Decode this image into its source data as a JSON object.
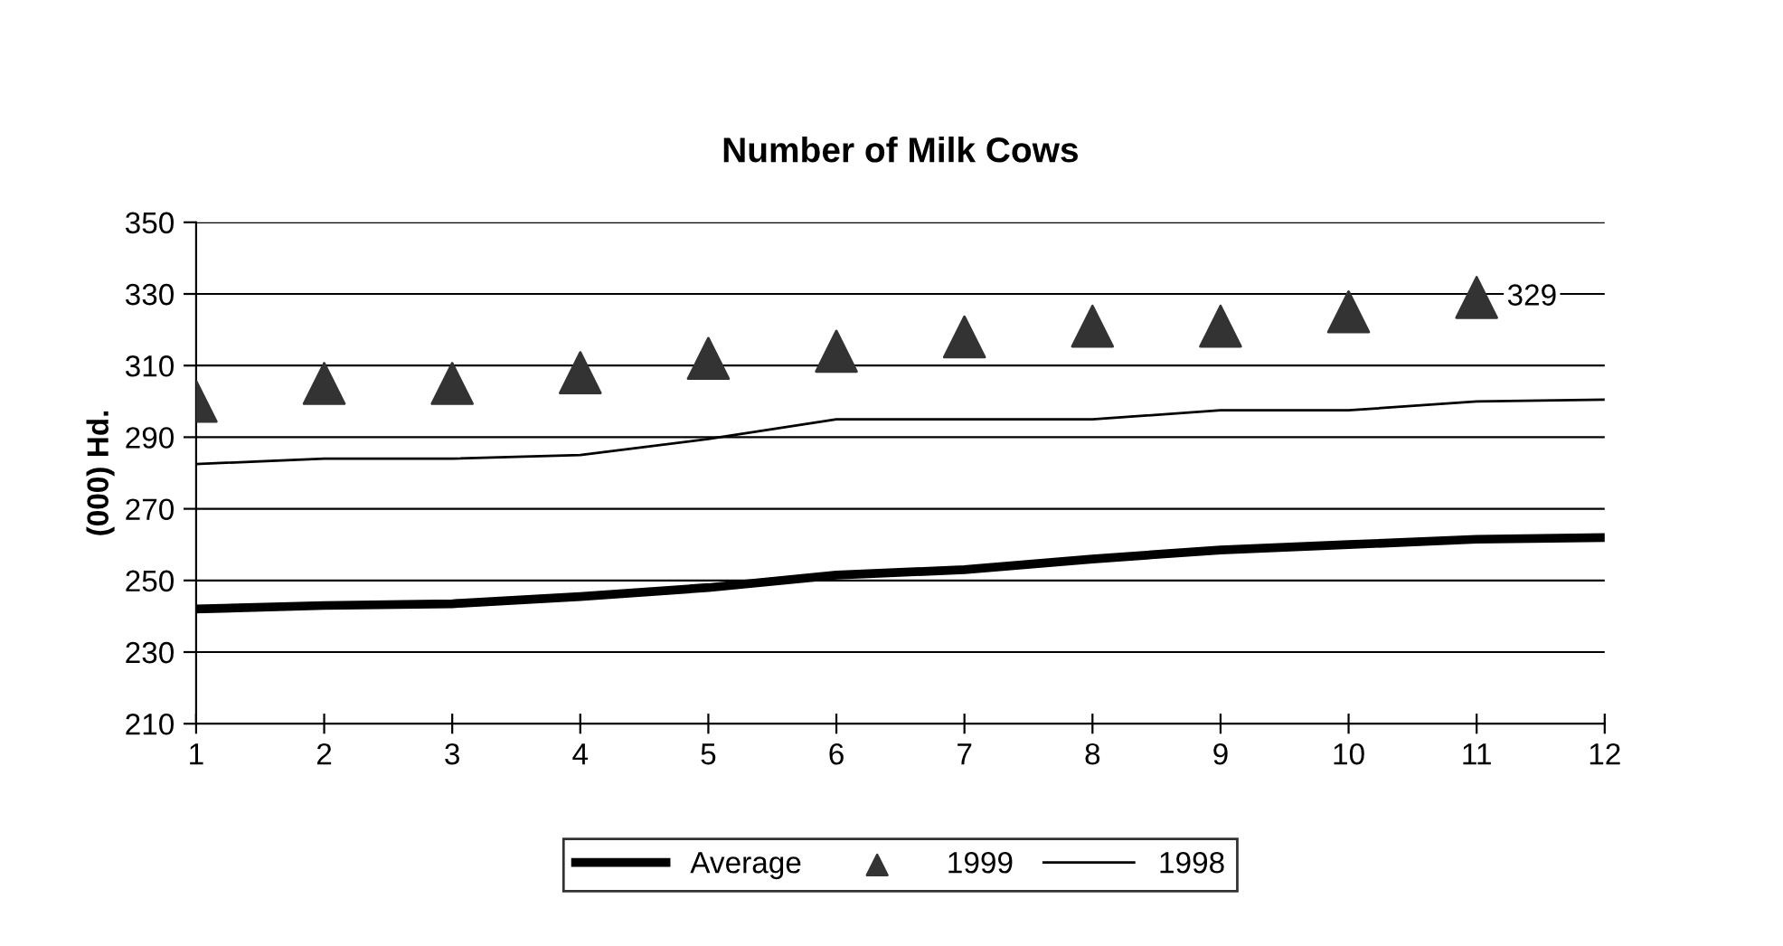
{
  "chart_data": {
    "type": "line",
    "title": "Number of Milk Cows",
    "ylabel": "(000) Hd.",
    "x": [
      1,
      2,
      3,
      4,
      5,
      6,
      7,
      8,
      9,
      10,
      11,
      12
    ],
    "xlim": [
      1,
      12
    ],
    "xticks": [
      1,
      2,
      3,
      4,
      5,
      6,
      7,
      8,
      9,
      10,
      11,
      12
    ],
    "ylim": [
      210,
      350
    ],
    "yticks": [
      210,
      230,
      250,
      270,
      290,
      310,
      330,
      350
    ],
    "grid": "y",
    "legend": "bottom",
    "series": [
      {
        "name": "Average",
        "color": "#000000",
        "values": [
          242,
          243,
          243.5,
          245.5,
          248,
          251.5,
          253,
          256,
          258.5,
          260,
          261.5,
          262
        ]
      },
      {
        "name": "1999",
        "type": "scatter",
        "marker": "triangle",
        "color": "#333333",
        "values": [
          300,
          305,
          305,
          308,
          312,
          314,
          318,
          321,
          321,
          325,
          329,
          null
        ],
        "value_labels": [
          null,
          null,
          null,
          null,
          null,
          null,
          null,
          null,
          null,
          null,
          "329",
          null
        ]
      },
      {
        "name": "1998",
        "color": "#000000",
        "values": [
          282.5,
          284,
          284,
          285,
          289.5,
          295,
          295,
          295,
          297.5,
          297.5,
          300,
          300.5
        ]
      }
    ]
  }
}
